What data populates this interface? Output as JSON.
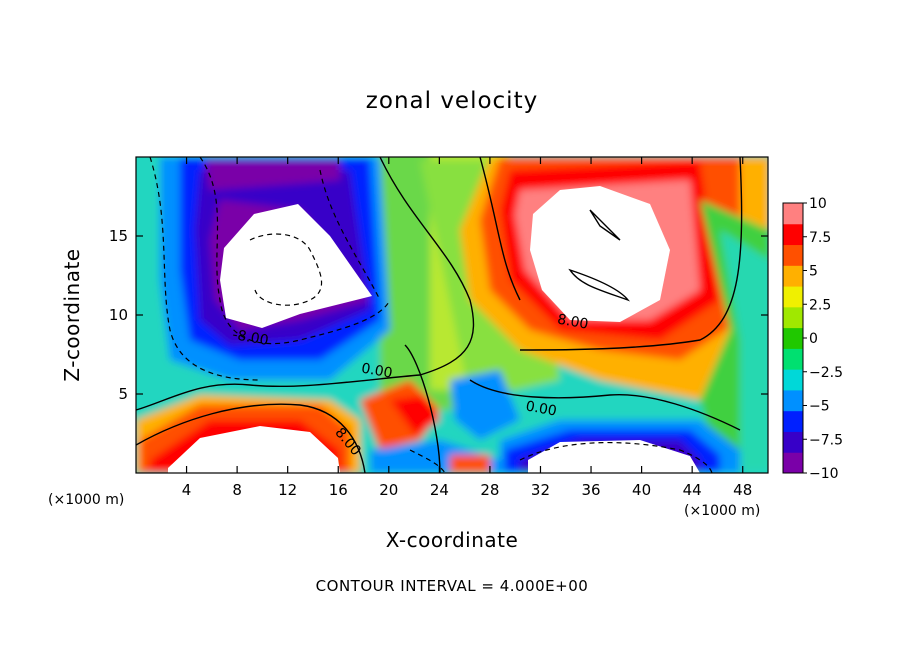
{
  "title": "zonal velocity",
  "footer_note": "CONTOUR INTERVAL = 4.000E+00",
  "chart_data": {
    "type": "heatmap",
    "title": "zonal velocity",
    "xlabel": "X-coordinate",
    "ylabel": "Z-coordinate",
    "x_unit_label": "(×1000 m)",
    "xlim": [
      0,
      50
    ],
    "ylim": [
      0,
      20
    ],
    "x_ticks": [
      4,
      8,
      12,
      16,
      20,
      24,
      28,
      32,
      36,
      40,
      44,
      48
    ],
    "y_ticks": [
      5,
      10,
      15
    ],
    "colorbar": {
      "ticks": [
        10,
        7.5,
        5,
        2.5,
        0,
        -2.5,
        -5,
        -7.5,
        -10
      ],
      "tick_labels": [
        "10",
        "7.5",
        "5",
        "2.5",
        "0",
        "−2.5",
        "−5",
        "−7.5",
        "−10"
      ],
      "range": [
        -10,
        10
      ],
      "colors": [
        "#7a00a8",
        "#3700c8",
        "#0020ff",
        "#0090ff",
        "#00d8d8",
        "#00e070",
        "#20c800",
        "#a0e800",
        "#f0f000",
        "#ffb000",
        "#ff5000",
        "#ff0000",
        "#ff8080"
      ],
      "over_color": "#ffffff"
    },
    "contour_interval": 4,
    "contour_labels": [
      {
        "text": "-8.00",
        "x": 9,
        "z": 8.3
      },
      {
        "text": "0.00",
        "x": 19,
        "z": 6.2
      },
      {
        "text": "0.00",
        "x": 32,
        "z": 3.8
      },
      {
        "text": "8.00",
        "x": 34.5,
        "z": 9.3
      },
      {
        "text": "8.00",
        "x": 16.5,
        "z": 1.8
      }
    ],
    "features": [
      {
        "kind": "max",
        "x": 36,
        "z": 13.5,
        "value": 11
      },
      {
        "kind": "min",
        "x": 12,
        "z": 13.5,
        "value": -12
      },
      {
        "kind": "max",
        "x": 11,
        "z": 2,
        "value": 12
      },
      {
        "kind": "min",
        "x": 36,
        "z": 1,
        "value": -11
      }
    ]
  }
}
